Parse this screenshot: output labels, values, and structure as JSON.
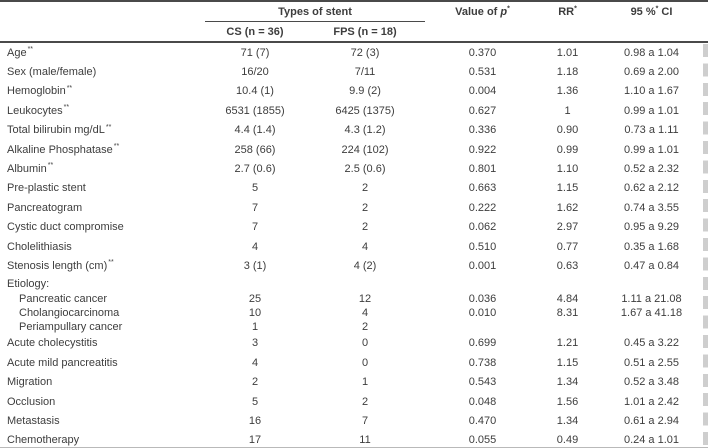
{
  "table": {
    "header": {
      "types_of_stent": "Types of stent",
      "col_cs": "CS (n = 36)",
      "col_fps": "FPS (n = 18)",
      "p_prefix": "Value of ",
      "p_symbol": "p",
      "p_sup": "*",
      "rr_label": "RR",
      "rr_sup": "*",
      "ci_prefix": "95 %",
      "ci_sup": "*",
      "ci_suffix": " CI"
    },
    "rows": [
      {
        "variant": "normal",
        "label": "Age",
        "sup": "**",
        "cs": "71 (7)",
        "fps": "72 (3)",
        "p": "0.370",
        "rr": "1.01",
        "ci": "0.98 a 1.04"
      },
      {
        "variant": "normal",
        "label": "Sex (male/female)",
        "sup": "",
        "cs": "16/20",
        "fps": "7/11",
        "p": "0.531",
        "rr": "1.18",
        "ci": "0.69 a 2.00"
      },
      {
        "variant": "normal",
        "label": "Hemoglobin",
        "sup": "**",
        "cs": "10.4 (1)",
        "fps": "9.9 (2)",
        "p": "0.004",
        "rr": "1.36",
        "ci": "1.10 a 1.67"
      },
      {
        "variant": "normal",
        "label": "Leukocytes",
        "sup": "**",
        "cs": "6531 (1855)",
        "fps": "6425 (1375)",
        "p": "0.627",
        "rr": "1",
        "ci": "0.99 a 1.01"
      },
      {
        "variant": "normal",
        "label": "Total bilirubin mg/dL",
        "sup": "**",
        "cs": "4.4 (1.4)",
        "fps": "4.3 (1.2)",
        "p": "0.336",
        "rr": "0.90",
        "ci": "0.73 a 1.11"
      },
      {
        "variant": "normal",
        "label": "Alkaline Phosphatase",
        "sup": "**",
        "cs": "258 (66)",
        "fps": "224 (102)",
        "p": "0.922",
        "rr": "0.99",
        "ci": "0.99 a 1.01"
      },
      {
        "variant": "normal",
        "label": "Albumin",
        "sup": "**",
        "cs": "2.7 (0.6)",
        "fps": "2.5 (0.6)",
        "p": "0.801",
        "rr": "1.10",
        "ci": "0.52 a 2.32"
      },
      {
        "variant": "normal",
        "label": "Pre-plastic stent",
        "sup": "",
        "cs": "5",
        "fps": "2",
        "p": "0.663",
        "rr": "1.15",
        "ci": "0.62 a 2.12"
      },
      {
        "variant": "normal",
        "label": "Pancreatogram",
        "sup": "",
        "cs": "7",
        "fps": "2",
        "p": "0.222",
        "rr": "1.62",
        "ci": "0.74 a 3.55"
      },
      {
        "variant": "normal",
        "label": "Cystic duct compromise",
        "sup": "",
        "cs": "7",
        "fps": "2",
        "p": "0.062",
        "rr": "2.97",
        "ci": "0.95 a 9.29"
      },
      {
        "variant": "normal",
        "label": "Cholelithiasis",
        "sup": "",
        "cs": "4",
        "fps": "4",
        "p": "0.510",
        "rr": "0.77",
        "ci": "0.35 a 1.68"
      },
      {
        "variant": "normal",
        "label": "Stenosis length (cm)",
        "sup": "**",
        "cs": "3 (1)",
        "fps": "4 (2)",
        "p": "0.001",
        "rr": "0.63",
        "ci": "0.47 a 0.84"
      },
      {
        "variant": "group",
        "label": "Etiology:",
        "sup": "",
        "cs": "",
        "fps": "",
        "p": "",
        "rr": "",
        "ci": ""
      },
      {
        "variant": "sub",
        "label": "Pancreatic cancer",
        "sup": "",
        "cs": "25",
        "fps": "12",
        "p": "0.036",
        "rr": "4.84",
        "ci": "1.11 a 21.08"
      },
      {
        "variant": "sub",
        "label": "Cholangiocarcinoma",
        "sup": "",
        "cs": "10",
        "fps": "4",
        "p": "0.010",
        "rr": "8.31",
        "ci": "1.67 a 41.18"
      },
      {
        "variant": "sub",
        "label": "Periampullary cancer",
        "sup": "",
        "cs": "1",
        "fps": "2",
        "p": "",
        "rr": "",
        "ci": ""
      },
      {
        "variant": "normal",
        "label": "Acute cholecystitis",
        "sup": "",
        "cs": "3",
        "fps": "0",
        "p": "0.699",
        "rr": "1.21",
        "ci": "0.45 a 3.22"
      },
      {
        "variant": "normal",
        "label": "Acute mild pancreatitis",
        "sup": "",
        "cs": "4",
        "fps": "0",
        "p": "0.738",
        "rr": "1.15",
        "ci": "0.51 a 2.55"
      },
      {
        "variant": "normal",
        "label": "Migration",
        "sup": "",
        "cs": "2",
        "fps": "1",
        "p": "0.543",
        "rr": "1.34",
        "ci": "0.52 a 3.48"
      },
      {
        "variant": "normal",
        "label": "Occlusion",
        "sup": "",
        "cs": "5",
        "fps": "2",
        "p": "0.048",
        "rr": "1.56",
        "ci": "1.01 a 2.42"
      },
      {
        "variant": "normal",
        "label": "Metastasis",
        "sup": "",
        "cs": "16",
        "fps": "7",
        "p": "0.470",
        "rr": "1.34",
        "ci": "0.61 a 2.94"
      },
      {
        "variant": "normal",
        "label": "Chemotherapy",
        "sup": "",
        "cs": "17",
        "fps": "11",
        "p": "0.055",
        "rr": "0.49",
        "ci": "0.24 a 1.01"
      }
    ]
  },
  "colors": {
    "text": "#3d3d3d",
    "rule_dark": "#4a4a4a",
    "rule_light": "#b9b9b9",
    "edge_artifact": "#c6c6c6",
    "background": "#ffffff"
  }
}
